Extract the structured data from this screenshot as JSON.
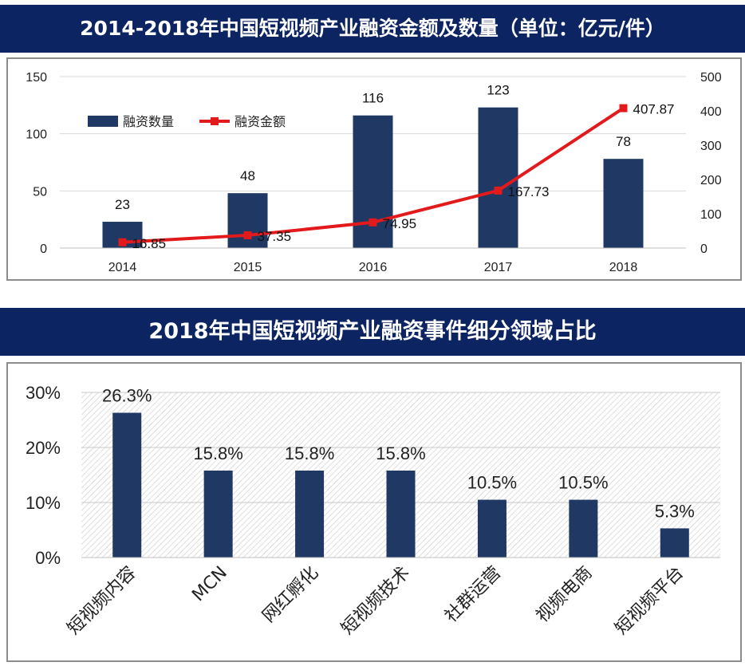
{
  "chart_data": [
    {
      "type": "bar+line",
      "title": "2014-2018年中国短视频产业融资金额及数量（单位：亿元/件）",
      "categories": [
        "2014",
        "2015",
        "2016",
        "2017",
        "2018"
      ],
      "series": [
        {
          "name": "融资数量",
          "type": "bar",
          "axis": "left",
          "color": "#1f3864",
          "values": [
            23,
            48,
            116,
            123,
            78
          ]
        },
        {
          "name": "融资金额",
          "type": "line",
          "axis": "right",
          "color": "#e31a1c",
          "values": [
            16.85,
            37.35,
            74.95,
            167.73,
            407.87
          ]
        }
      ],
      "bar_labels": [
        "23",
        "48",
        "116",
        "123",
        "78"
      ],
      "line_labels": [
        "16.85",
        "37.35",
        "74.95",
        "167.73",
        "407.87"
      ],
      "y_left": {
        "min": 0,
        "max": 150,
        "ticks": [
          "0",
          "50",
          "100",
          "150"
        ]
      },
      "y_right": {
        "min": 0,
        "max": 500,
        "ticks": [
          "0",
          "100",
          "200",
          "300",
          "400",
          "500"
        ]
      },
      "legend_position": "top-left",
      "grid": true
    },
    {
      "type": "bar",
      "title": "2018年中国短视频产业融资事件细分领域占比",
      "categories": [
        "短视频内容",
        "MCN",
        "网红孵化",
        "短视频技术",
        "社群运营",
        "视频电商",
        "短视频平台"
      ],
      "values": [
        26.3,
        15.8,
        15.8,
        15.8,
        10.5,
        10.5,
        5.3
      ],
      "labels": [
        "26.3%",
        "15.8%",
        "15.8%",
        "15.8%",
        "10.5%",
        "10.5%",
        "5.3%"
      ],
      "color": "#1f3864",
      "ylim": [
        0,
        30
      ],
      "y_ticks": [
        "0%",
        "10%",
        "20%",
        "30%"
      ],
      "grid": true
    }
  ]
}
